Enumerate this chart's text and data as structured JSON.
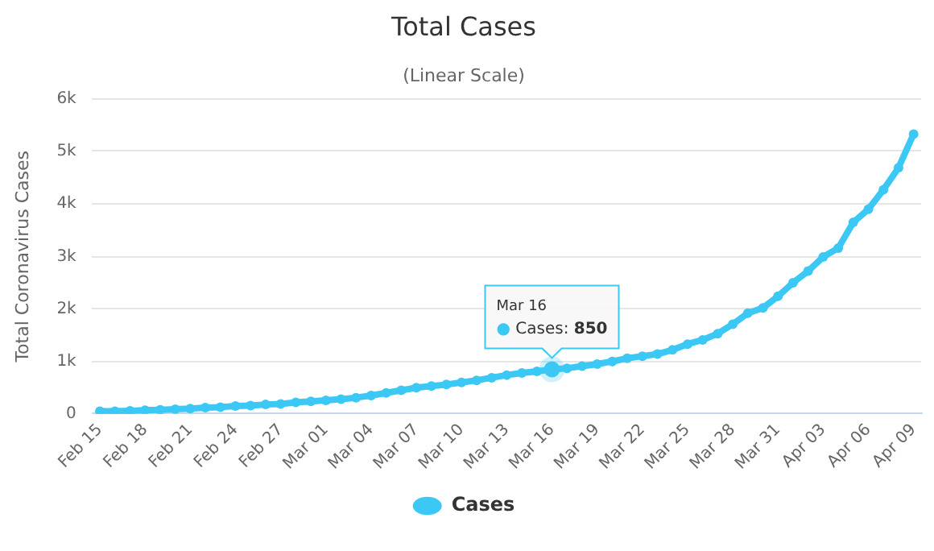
{
  "chart_data": {
    "type": "line",
    "title": "Total Cases",
    "subtitle": "(Linear Scale)",
    "ylabel": "Total Coronavirus Cases",
    "categories": [
      "Feb 15",
      null,
      null,
      "Feb 18",
      null,
      null,
      "Feb 21",
      null,
      null,
      "Feb 24",
      null,
      null,
      "Feb 27",
      null,
      null,
      "Mar 01",
      null,
      null,
      "Mar 04",
      null,
      null,
      "Mar 07",
      null,
      null,
      "Mar 10",
      null,
      null,
      "Mar 13",
      null,
      null,
      "Mar 16",
      null,
      null,
      "Mar 19",
      null,
      null,
      "Mar 22",
      null,
      null,
      "Mar 25",
      null,
      null,
      "Mar 28",
      null,
      null,
      "Mar 31",
      null,
      null,
      "Apr 03",
      null,
      null,
      "Apr 06",
      null,
      null,
      "Apr 09"
    ],
    "series": [
      {
        "name": "Cases",
        "color": "#3cc8f4",
        "values": [
          50,
          50,
          60,
          70,
          80,
          90,
          100,
          120,
          130,
          150,
          160,
          180,
          190,
          220,
          240,
          260,
          280,
          310,
          350,
          400,
          450,
          500,
          530,
          560,
          600,
          640,
          690,
          740,
          780,
          810,
          850,
          870,
          910,
          950,
          1000,
          1060,
          1100,
          1140,
          1220,
          1330,
          1410,
          1530,
          1710,
          1920,
          2020,
          2240,
          2500,
          2720,
          2990,
          3160,
          3650,
          3900,
          4270,
          4690,
          5330
        ]
      }
    ],
    "ylim": [
      0,
      6000
    ],
    "yticks": [
      0,
      {
        "value": 1000,
        "label": "1k"
      },
      {
        "value": 2000,
        "label": "2k"
      },
      {
        "value": 3000,
        "label": "3k"
      },
      {
        "value": 4000,
        "label": "4k"
      },
      {
        "value": 5000,
        "label": "5k"
      },
      {
        "value": 6000,
        "label": "6k"
      }
    ],
    "grid": "y",
    "legend": "bottom",
    "marker": "circle",
    "line_style": "solid",
    "annotations": [
      {
        "text": "Mar 16\n● Cases: 850",
        "x": "Mar 16",
        "y": 850
      }
    ]
  }
}
